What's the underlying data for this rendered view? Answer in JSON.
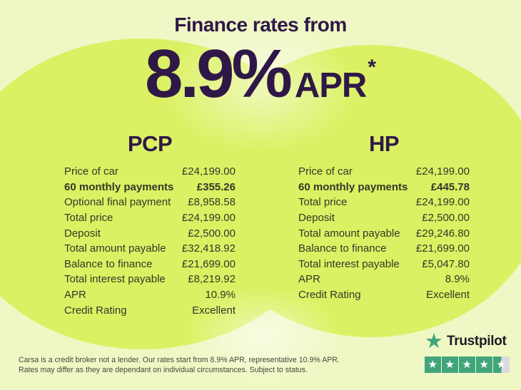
{
  "colors": {
    "page-bg": "#eff8c4",
    "circle-green": "#dbf163",
    "accent-purple": "#2f1847",
    "text-dark": "#363629",
    "disclaimer-text": "#45453a",
    "trustpilot-green": "#41a57c",
    "trustpilot-grey": "#d9dbe0",
    "trustpilot-text": "#1c1c24"
  },
  "header": {
    "title": "Finance rates from",
    "rate": "8.9%",
    "rate_suffix": "APR",
    "rate_footnote_symbol": "*"
  },
  "tables": [
    {
      "title": "PCP",
      "rows": [
        {
          "label": "Price of car",
          "value": "£24,199.00",
          "bold": false
        },
        {
          "label": "60 monthly payments",
          "value": "£355.26",
          "bold": true
        },
        {
          "label": "Optional final payment",
          "value": "£8,958.58",
          "bold": false
        },
        {
          "label": "Total price",
          "value": "£24,199.00",
          "bold": false
        },
        {
          "label": "Deposit",
          "value": "£2,500.00",
          "bold": false
        },
        {
          "label": "Total amount payable",
          "value": "£32,418.92",
          "bold": false
        },
        {
          "label": "Balance to finance",
          "value": "£21,699.00",
          "bold": false
        },
        {
          "label": "Total interest payable",
          "value": "£8,219.92",
          "bold": false
        },
        {
          "label": "APR",
          "value": "10.9%",
          "bold": false
        },
        {
          "label": "Credit Rating",
          "value": "Excellent",
          "bold": false
        }
      ]
    },
    {
      "title": "HP",
      "rows": [
        {
          "label": "Price of car",
          "value": "£24,199.00",
          "bold": false
        },
        {
          "label": "60 monthly payments",
          "value": "£445.78",
          "bold": true
        },
        {
          "label": "Total price",
          "value": "£24,199.00",
          "bold": false
        },
        {
          "label": "Deposit",
          "value": "£2,500.00",
          "bold": false
        },
        {
          "label": "Total amount payable",
          "value": "£29,246.80",
          "bold": false
        },
        {
          "label": "Balance to finance",
          "value": "£21,699.00",
          "bold": false
        },
        {
          "label": "Total interest payable",
          "value": "£5,047.80",
          "bold": false
        },
        {
          "label": "APR",
          "value": "8.9%",
          "bold": false
        },
        {
          "label": "Credit Rating",
          "value": "Excellent",
          "bold": false
        }
      ]
    }
  ],
  "disclaimer": {
    "line1": "Carsa is a credit broker not a lender. Our rates start from 8.9% APR, representative 10.9% APR.",
    "line2": "Rates may differ as they are dependant on individual circumstances. Subject to status."
  },
  "trustpilot": {
    "brand": "Trustpilot",
    "star_icon": "★",
    "stars": [
      "full",
      "full",
      "full",
      "full",
      "half"
    ]
  }
}
